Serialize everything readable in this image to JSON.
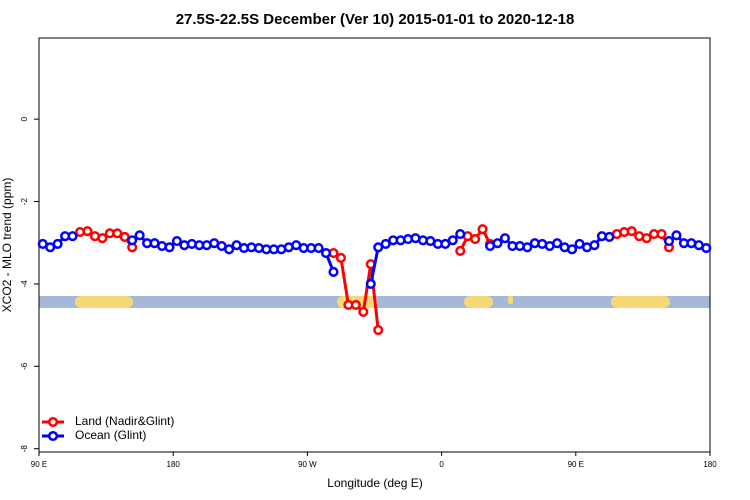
{
  "chart_data": {
    "type": "line",
    "title": "27.5S-22.5S December (Ver 10)   2015-01-01 to 2020-12-18",
    "x_label": "Longitude (deg E)",
    "y_label": "XCO2 - MLO trend (ppm)",
    "x": [
      92.5,
      97.5,
      102.5,
      107.5,
      112.5,
      117.5,
      122.5,
      127.5,
      132.5,
      137.5,
      142.5,
      147.5,
      152.5,
      157.5,
      162.5,
      167.5,
      172.5,
      177.5,
      182.5,
      187.5,
      192.5,
      197.5,
      202.5,
      207.5,
      212.5,
      217.5,
      222.5,
      227.5,
      232.5,
      237.5,
      242.5,
      247.5,
      252.5,
      257.5,
      262.5,
      267.5,
      272.5,
      277.5,
      282.5,
      287.5,
      292.5,
      297.5,
      302.5,
      307.5,
      312.5,
      317.5,
      322.5,
      327.5,
      332.5,
      337.5,
      342.5,
      347.5,
      352.5,
      357.5,
      362.5,
      367.5,
      372.5,
      377.5,
      382.5,
      387.5,
      392.5,
      397.5,
      402.5,
      407.5,
      412.5,
      417.5,
      422.5,
      427.5,
      432.5,
      437.5,
      442.5,
      447.5,
      452.5,
      457.5,
      462.5,
      467.5,
      472.5,
      477.5,
      482.5,
      487.5,
      492.5,
      497.5,
      502.5,
      507.5,
      512.5,
      517.5,
      522.5,
      527.5,
      532.5,
      537.5
    ],
    "series": [
      {
        "name": "Land (Nadir&Glint)",
        "color": "#ff0000",
        "values": [
          null,
          null,
          null,
          null,
          null,
          -2.74,
          -2.72,
          -2.84,
          -2.89,
          -2.77,
          -2.77,
          -2.86,
          -3.11,
          null,
          null,
          null,
          null,
          null,
          null,
          null,
          null,
          null,
          null,
          null,
          null,
          null,
          null,
          null,
          null,
          null,
          null,
          null,
          null,
          null,
          null,
          null,
          null,
          null,
          null,
          -3.25,
          -3.37,
          -4.51,
          -4.51,
          -4.68,
          -3.52,
          -5.12,
          null,
          null,
          null,
          null,
          null,
          null,
          null,
          null,
          null,
          null,
          -3.2,
          -2.84,
          -2.91,
          -2.67,
          -3.03,
          null,
          null,
          null,
          null,
          null,
          null,
          null,
          null,
          null,
          null,
          null,
          null,
          null,
          null,
          null,
          null,
          -2.79,
          -2.74,
          -2.72,
          -2.84,
          -2.89,
          -2.79,
          -2.79,
          -3.11,
          null,
          null,
          null,
          null,
          null
        ]
      },
      {
        "name": "Ocean (Glint)",
        "color": "#0000ff",
        "values": [
          -3.03,
          -3.11,
          -3.03,
          -2.84,
          -2.84,
          null,
          null,
          null,
          null,
          null,
          null,
          null,
          -2.94,
          -2.82,
          -3.01,
          -3.01,
          -3.08,
          -3.11,
          -2.96,
          -3.06,
          -3.03,
          -3.06,
          -3.06,
          -3.01,
          -3.08,
          -3.16,
          -3.06,
          -3.13,
          -3.11,
          -3.13,
          -3.16,
          -3.16,
          -3.16,
          -3.11,
          -3.06,
          -3.13,
          -3.13,
          -3.13,
          -3.25,
          -3.71,
          null,
          null,
          null,
          null,
          -4.0,
          -3.11,
          -3.03,
          -2.94,
          -2.94,
          -2.91,
          -2.89,
          -2.94,
          -2.96,
          -3.03,
          -3.03,
          -2.94,
          -2.79,
          null,
          null,
          null,
          -3.08,
          -3.01,
          -2.89,
          -3.08,
          -3.08,
          -3.11,
          -3.01,
          -3.03,
          -3.08,
          -3.01,
          -3.11,
          -3.16,
          -3.03,
          -3.11,
          -3.06,
          -2.84,
          -2.86,
          null,
          null,
          null,
          null,
          null,
          null,
          null,
          -2.96,
          -2.82,
          -3.01,
          -3.01,
          -3.06,
          -3.13
        ]
      }
    ],
    "xlim": [
      90,
      540
    ],
    "xticks": [
      {
        "value": 90,
        "label": "90 E"
      },
      {
        "value": 180,
        "label": "180"
      },
      {
        "value": 270,
        "label": "90 W"
      },
      {
        "value": 360,
        "label": "0"
      },
      {
        "value": 450,
        "label": "90 E"
      },
      {
        "value": 540,
        "label": "180"
      }
    ],
    "ylim": [
      -8.08,
      1.97
    ],
    "yticks": [
      0,
      -2,
      -4,
      -6,
      -8
    ],
    "legend": "bottom-left"
  }
}
